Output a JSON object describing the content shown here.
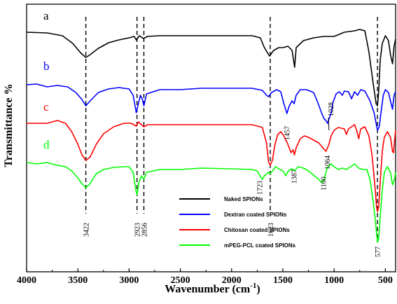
{
  "chart_data": {
    "type": "line",
    "title": "",
    "xlabel": "Wavenumber (cm",
    "xlabel_sup": "-1",
    "xlabel_close": ")",
    "ylabel": "Transmittance %",
    "xlim": [
      4000,
      400
    ],
    "x_reversed": true,
    "x_ticks": [
      4000,
      3500,
      3000,
      2500,
      2000,
      1500,
      1000,
      500
    ],
    "legend_placement": "lower-right",
    "grid": false,
    "series": [
      {
        "name": "Naked SPIONs",
        "letter": "a",
        "color": "#000000",
        "points": [
          [
            4000,
            40
          ],
          [
            3800,
            41
          ],
          [
            3650,
            45
          ],
          [
            3550,
            56
          ],
          [
            3470,
            70
          ],
          [
            3422,
            76
          ],
          [
            3380,
            72
          ],
          [
            3300,
            63
          ],
          [
            3200,
            55
          ],
          [
            3100,
            51
          ],
          [
            3000,
            48
          ],
          [
            2950,
            46
          ],
          [
            2930,
            51
          ],
          [
            2900,
            45
          ],
          [
            2860,
            49
          ],
          [
            2820,
            46
          ],
          [
            2700,
            45
          ],
          [
            2500,
            45
          ],
          [
            2300,
            45
          ],
          [
            2000,
            45
          ],
          [
            1800,
            45
          ],
          [
            1720,
            48
          ],
          [
            1680,
            62
          ],
          [
            1630,
            74
          ],
          [
            1590,
            66
          ],
          [
            1540,
            62
          ],
          [
            1500,
            62
          ],
          [
            1450,
            60
          ],
          [
            1410,
            66
          ],
          [
            1385,
            90
          ],
          [
            1370,
            62
          ],
          [
            1300,
            52
          ],
          [
            1200,
            48
          ],
          [
            1100,
            46
          ],
          [
            1000,
            46
          ],
          [
            900,
            40
          ],
          [
            800,
            38
          ],
          [
            750,
            36
          ],
          [
            700,
            38
          ],
          [
            660,
            68
          ],
          [
            620,
            112
          ],
          [
            590,
            142
          ],
          [
            577,
            145
          ],
          [
            565,
            125
          ],
          [
            550,
            80
          ],
          [
            530,
            56
          ],
          [
            500,
            45
          ],
          [
            470,
            52
          ],
          [
            450,
            72
          ],
          [
            430,
            85
          ],
          [
            415,
            60
          ],
          [
            400,
            50
          ]
        ]
      },
      {
        "name": "Dextran coated SPIONs",
        "letter": "b",
        "color": "#0000ff",
        "points": [
          [
            4000,
            115
          ],
          [
            3900,
            114
          ],
          [
            3800,
            118
          ],
          [
            3700,
            116
          ],
          [
            3600,
            118
          ],
          [
            3520,
            126
          ],
          [
            3460,
            136
          ],
          [
            3422,
            145
          ],
          [
            3380,
            138
          ],
          [
            3300,
            126
          ],
          [
            3200,
            121
          ],
          [
            3100,
            119
          ],
          [
            3000,
            121
          ],
          [
            2960,
            130
          ],
          [
            2930,
            155
          ],
          [
            2910,
            142
          ],
          [
            2890,
            130
          ],
          [
            2870,
            136
          ],
          [
            2856,
            145
          ],
          [
            2830,
            128
          ],
          [
            2700,
            122
          ],
          [
            2500,
            122
          ],
          [
            2300,
            120
          ],
          [
            2000,
            120
          ],
          [
            1800,
            120
          ],
          [
            1700,
            123
          ],
          [
            1660,
            130
          ],
          [
            1640,
            132
          ],
          [
            1610,
            126
          ],
          [
            1560,
            122
          ],
          [
            1520,
            125
          ],
          [
            1490,
            142
          ],
          [
            1460,
            156
          ],
          [
            1440,
            146
          ],
          [
            1410,
            138
          ],
          [
            1390,
            142
          ],
          [
            1370,
            130
          ],
          [
            1330,
            122
          ],
          [
            1270,
            122
          ],
          [
            1200,
            126
          ],
          [
            1160,
            140
          ],
          [
            1120,
            156
          ],
          [
            1100,
            163
          ],
          [
            1080,
            166
          ],
          [
            1064,
            170
          ],
          [
            1040,
            160
          ],
          [
            1028,
            155
          ],
          [
            1010,
            140
          ],
          [
            980,
            128
          ],
          [
            950,
            125
          ],
          [
            920,
            130
          ],
          [
            900,
            124
          ],
          [
            860,
            125
          ],
          [
            830,
            135
          ],
          [
            800,
            125
          ],
          [
            770,
            130
          ],
          [
            740,
            122
          ],
          [
            700,
            124
          ],
          [
            650,
            138
          ],
          [
            610,
            155
          ],
          [
            577,
            180
          ],
          [
            560,
            175
          ],
          [
            540,
            152
          ],
          [
            520,
            130
          ],
          [
            500,
            122
          ],
          [
            470,
            126
          ],
          [
            450,
            138
          ],
          [
            430,
            150
          ],
          [
            415,
            130
          ],
          [
            400,
            125
          ]
        ]
      },
      {
        "name": "Chitosan coated SPIONs",
        "letter": "c",
        "color": "#ff0000",
        "points": [
          [
            4000,
            170
          ],
          [
            3800,
            170
          ],
          [
            3700,
            166
          ],
          [
            3620,
            170
          ],
          [
            3560,
            182
          ],
          [
            3500,
            200
          ],
          [
            3460,
            215
          ],
          [
            3422,
            223
          ],
          [
            3380,
            218
          ],
          [
            3320,
            200
          ],
          [
            3250,
            185
          ],
          [
            3150,
            175
          ],
          [
            3050,
            170
          ],
          [
            2980,
            170
          ],
          [
            2930,
            174
          ],
          [
            2910,
            168
          ],
          [
            2880,
            172
          ],
          [
            2856,
            175
          ],
          [
            2820,
            172
          ],
          [
            2700,
            172
          ],
          [
            2500,
            172
          ],
          [
            2300,
            172
          ],
          [
            2000,
            172
          ],
          [
            1800,
            172
          ],
          [
            1700,
            176
          ],
          [
            1660,
            198
          ],
          [
            1640,
            225
          ],
          [
            1623,
            230
          ],
          [
            1600,
            222
          ],
          [
            1580,
            202
          ],
          [
            1550,
            186
          ],
          [
            1520,
            182
          ],
          [
            1490,
            188
          ],
          [
            1457,
            198
          ],
          [
            1420,
            212
          ],
          [
            1400,
            208
          ],
          [
            1387,
            215
          ],
          [
            1370,
            205
          ],
          [
            1330,
            192
          ],
          [
            1290,
            188
          ],
          [
            1250,
            190
          ],
          [
            1200,
            194
          ],
          [
            1150,
            198
          ],
          [
            1110,
            205
          ],
          [
            1080,
            210
          ],
          [
            1064,
            205
          ],
          [
            1050,
            200
          ],
          [
            1030,
            188
          ],
          [
            1000,
            180
          ],
          [
            960,
            176
          ],
          [
            900,
            178
          ],
          [
            880,
            186
          ],
          [
            860,
            178
          ],
          [
            800,
            172
          ],
          [
            780,
            180
          ],
          [
            760,
            192
          ],
          [
            740,
            178
          ],
          [
            700,
            175
          ],
          [
            660,
            188
          ],
          [
            630,
            215
          ],
          [
            600,
            262
          ],
          [
            585,
            290
          ],
          [
            577,
            296
          ],
          [
            565,
            290
          ],
          [
            548,
            250
          ],
          [
            530,
            210
          ],
          [
            510,
            190
          ],
          [
            480,
            182
          ],
          [
            450,
            190
          ],
          [
            430,
            210
          ],
          [
            420,
            212
          ],
          [
            410,
            195
          ],
          [
            400,
            180
          ]
        ]
      },
      {
        "name": "mPEG-PCL coated SPIONs",
        "letter": "d",
        "color": "#00ff00",
        "points": [
          [
            4000,
            226
          ],
          [
            3900,
            228
          ],
          [
            3800,
            226
          ],
          [
            3700,
            230
          ],
          [
            3620,
            232
          ],
          [
            3560,
            238
          ],
          [
            3500,
            248
          ],
          [
            3460,
            256
          ],
          [
            3422,
            262
          ],
          [
            3380,
            256
          ],
          [
            3320,
            242
          ],
          [
            3250,
            236
          ],
          [
            3150,
            233
          ],
          [
            3050,
            232
          ],
          [
            3000,
            232
          ],
          [
            2960,
            240
          ],
          [
            2935,
            265
          ],
          [
            2923,
            272
          ],
          [
            2905,
            255
          ],
          [
            2880,
            245
          ],
          [
            2856,
            250
          ],
          [
            2830,
            240
          ],
          [
            2700,
            236
          ],
          [
            2500,
            236
          ],
          [
            2300,
            234
          ],
          [
            2000,
            235
          ],
          [
            1800,
            236
          ],
          [
            1750,
            238
          ],
          [
            1723,
            245
          ],
          [
            1700,
            250
          ],
          [
            1680,
            245
          ],
          [
            1640,
            240
          ],
          [
            1623,
            242
          ],
          [
            1600,
            238
          ],
          [
            1570,
            232
          ],
          [
            1540,
            235
          ],
          [
            1500,
            238
          ],
          [
            1470,
            245
          ],
          [
            1457,
            240
          ],
          [
            1420,
            235
          ],
          [
            1400,
            236
          ],
          [
            1387,
            238
          ],
          [
            1350,
            232
          ],
          [
            1300,
            234
          ],
          [
            1250,
            238
          ],
          [
            1200,
            244
          ],
          [
            1150,
            250
          ],
          [
            1120,
            255
          ],
          [
            1100,
            252
          ],
          [
            1080,
            240
          ],
          [
            1060,
            232
          ],
          [
            1030,
            228
          ],
          [
            1000,
            232
          ],
          [
            960,
            236
          ],
          [
            920,
            234
          ],
          [
            880,
            236
          ],
          [
            840,
            232
          ],
          [
            800,
            228
          ],
          [
            760,
            234
          ],
          [
            720,
            236
          ],
          [
            680,
            236
          ],
          [
            650,
            250
          ],
          [
            620,
            280
          ],
          [
            600,
            305
          ],
          [
            585,
            328
          ],
          [
            577,
            340
          ],
          [
            565,
            335
          ],
          [
            548,
            300
          ],
          [
            530,
            265
          ],
          [
            510,
            240
          ],
          [
            480,
            232
          ],
          [
            450,
            240
          ],
          [
            430,
            258
          ],
          [
            410,
            250
          ],
          [
            400,
            240
          ]
        ]
      }
    ],
    "peak_markers": [
      {
        "x": 3422,
        "label": "3422"
      },
      {
        "x": 2923,
        "label": "2923"
      },
      {
        "x": 2856,
        "label": "2856"
      },
      {
        "x": 1623,
        "label": "1623"
      },
      {
        "x": 577,
        "label": "577"
      }
    ],
    "annotations": [
      {
        "x": 1723,
        "label": "1723"
      },
      {
        "x": 1457,
        "label": "1457"
      },
      {
        "x": 1387,
        "label": "1387"
      },
      {
        "x": 1100,
        "label": "1100"
      },
      {
        "x": 1064,
        "label": "1064"
      },
      {
        "x": 1028,
        "label": "1028"
      }
    ]
  }
}
